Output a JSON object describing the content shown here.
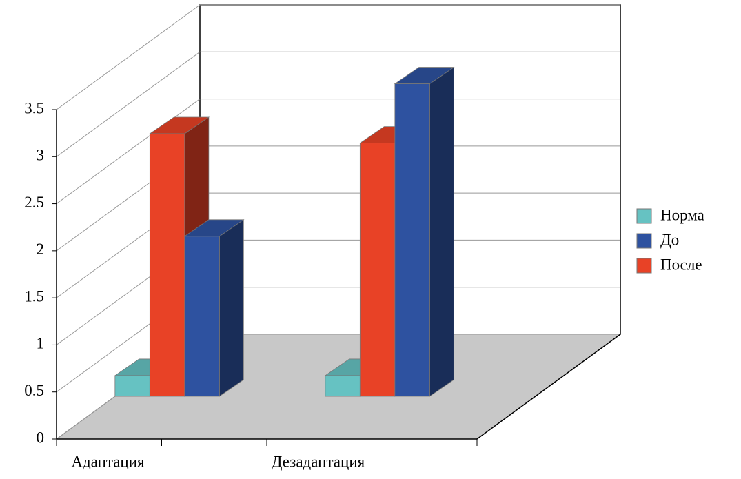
{
  "chart_data": {
    "type": "bar3d",
    "categories": [
      "Адаптация",
      "Дезадаптация"
    ],
    "series": [
      {
        "name": "Норма",
        "color": "#66c2c2",
        "values": [
          0.22,
          0.22
        ]
      },
      {
        "name": "До",
        "color": "#2e52a0",
        "values": [
          1.7,
          3.32
        ]
      },
      {
        "name": "После",
        "color": "#e84226",
        "values": [
          2.79,
          2.69
        ]
      }
    ],
    "ylim": [
      0,
      3.5
    ],
    "yticks": [
      0,
      0.5,
      1,
      1.5,
      2,
      2.5,
      3,
      3.5
    ],
    "grid": true,
    "legend": "right"
  }
}
